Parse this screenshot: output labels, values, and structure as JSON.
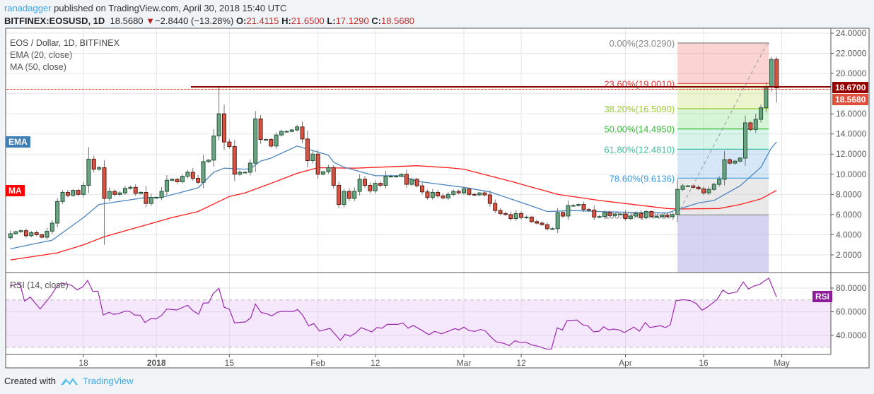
{
  "header": {
    "author": "ranadagger",
    "published": "published on TradingView.com, April 30, 2018 15:40 UTC",
    "symbol": "BITFINEX:EOSUSD, 1D",
    "last": "18.5680",
    "change": "−2.8440 (−13.28%)",
    "o_label": "O:",
    "o": "21.4115",
    "h_label": "H:",
    "h": "21.6500",
    "l_label": "L:",
    "l": "17.1290",
    "c_label": "C:",
    "c": "18.5680"
  },
  "legend": {
    "title": "EOS / Dollar, 1D, BITFINEX",
    "ema": "EMA (20, close)",
    "ma": "MA (50, close)",
    "ema_tag": "EMA",
    "ma_tag": "MA",
    "rsi": "RSI (14, close)",
    "rsi_tag": "RSI"
  },
  "price_axis": [
    "24.0000",
    "22.0000",
    "20.0000",
    "16.0000",
    "14.0000",
    "12.0000",
    "10.0000",
    "8.0000",
    "6.0000",
    "4.0000",
    "2.0000"
  ],
  "price_badges": {
    "resistance": "18.6700",
    "last": "18.5680"
  },
  "rsi_axis": [
    "80.0000",
    "60.0000",
    "40.0000"
  ],
  "time_axis": [
    {
      "label": "18",
      "day": 0
    },
    {
      "label": "2018",
      "day": 14,
      "bold": true
    },
    {
      "label": "15",
      "day": 28
    },
    {
      "label": "Feb",
      "day": 45
    },
    {
      "label": "12",
      "day": 56
    },
    {
      "label": "Mar",
      "day": 73
    },
    {
      "label": "12",
      "day": 84
    },
    {
      "label": "Apr",
      "day": 104
    },
    {
      "label": "16",
      "day": 119
    },
    {
      "label": "May",
      "day": 134
    }
  ],
  "fib": {
    "start_day": 114,
    "end_day": 131.5,
    "levels": [
      {
        "label": "0.00%(23.0290)",
        "price": 23.029,
        "color": "#888888"
      },
      {
        "label": "23.60%(19.0010)",
        "price": 19.001,
        "color": "#e53935"
      },
      {
        "label": "38.20%(16.5090)",
        "price": 16.509,
        "color": "#9acd32"
      },
      {
        "label": "50.00%(14.4950)",
        "price": 14.495,
        "color": "#33bb33"
      },
      {
        "label": "61.80%(12.4810)",
        "price": 12.481,
        "color": "#3bbf9c"
      },
      {
        "label": "78.60%(9.6136)",
        "price": 9.6136,
        "color": "#3a9be0"
      },
      {
        "label": "100.00%(5.9610)",
        "price": 5.961,
        "color": "#888888"
      }
    ]
  },
  "resistance_price": 18.67,
  "chart_data": {
    "type": "candlestick",
    "first_day": -14,
    "first_open": 3.7,
    "closes": [
      4.1,
      4.3,
      4.4,
      3.9,
      4.2,
      4.0,
      3.75,
      4.35,
      5.15,
      7.3,
      8.2,
      7.9,
      8.4,
      8.0,
      8.9,
      11.5,
      10.5,
      10.65,
      7.6,
      8.3,
      8.0,
      8.15,
      8.6,
      8.7,
      8.1,
      8.2,
      7.1,
      7.7,
      7.7,
      8.3,
      9.4,
      9.5,
      9.25,
      9.8,
      10.2,
      9.6,
      9.2,
      11.25,
      11.4,
      13.8,
      16.0,
      13.2,
      12.75,
      10.0,
      10.2,
      10.2,
      11.1,
      15.5,
      13.45,
      13.45,
      12.8,
      13.9,
      14.25,
      14.25,
      14.4,
      14.7,
      13.5,
      11.35,
      12.0,
      10.0,
      10.25,
      10.65,
      8.9,
      7.0,
      8.3,
      7.6,
      8.3,
      9.5,
      8.9,
      8.35,
      9.1,
      8.9,
      9.8,
      9.8,
      9.8,
      10.0,
      9.0,
      9.5,
      8.85,
      8.25,
      7.7,
      8.2,
      7.85,
      7.65,
      8.0,
      8.3,
      8.15,
      8.55,
      8.0,
      7.95,
      8.15,
      7.95,
      7.1,
      6.4,
      6.1,
      6.0,
      5.6,
      6.1,
      5.7,
      5.75,
      5.3,
      5.15,
      5.0,
      4.6,
      4.6,
      6.2,
      5.85,
      6.9,
      6.9,
      7.0,
      6.5,
      6.45,
      5.75,
      5.8,
      6.2,
      5.9,
      6.05,
      6.05,
      5.6,
      5.85,
      6.1,
      5.7,
      6.3,
      5.8,
      5.8,
      5.95,
      5.8,
      6.0,
      8.5,
      8.85,
      8.85,
      8.7,
      8.55,
      8.15,
      8.5,
      9.0,
      9.5,
      11.45,
      11.1,
      11.3,
      11.6,
      15.1,
      14.45,
      15.45,
      16.6,
      18.7,
      21.4,
      18.568
    ],
    "wick_overrides": {
      "4": {
        "l": 3.0
      },
      "26": {
        "h": 18.7
      },
      "132": {
        "h": 21.65
      },
      "133": {
        "h": 21.65,
        "l": 17.129
      }
    },
    "ema20": [
      [
        -14,
        2.6
      ],
      [
        -8,
        3.25
      ],
      [
        -6,
        3.45
      ],
      [
        0,
        5.7
      ],
      [
        3,
        7.0
      ],
      [
        12,
        7.7
      ],
      [
        15,
        7.7
      ],
      [
        22,
        8.65
      ],
      [
        25,
        10.2
      ],
      [
        27,
        10.6
      ],
      [
        31,
        10.5
      ],
      [
        32,
        10.55
      ],
      [
        34,
        11.3
      ],
      [
        36,
        11.6
      ],
      [
        41,
        12.8
      ],
      [
        45,
        12.2
      ],
      [
        47,
        11.9
      ],
      [
        48,
        11.2
      ],
      [
        50,
        10.7
      ],
      [
        56,
        9.85
      ],
      [
        61,
        9.85
      ],
      [
        64,
        9.3
      ],
      [
        73,
        8.7
      ],
      [
        78,
        8.25
      ],
      [
        82,
        7.55
      ],
      [
        86,
        6.85
      ],
      [
        89,
        6.3
      ],
      [
        94,
        6.4
      ],
      [
        99,
        6.3
      ],
      [
        112,
        6.15
      ],
      [
        114,
        6.5
      ],
      [
        118,
        7.15
      ],
      [
        121,
        7.4
      ],
      [
        126,
        8.85
      ],
      [
        130,
        10.7
      ],
      [
        132,
        12.6
      ],
      [
        133,
        13.2
      ]
    ],
    "ma50": [
      [
        -14,
        1.5
      ],
      [
        -5,
        2.2
      ],
      [
        0,
        3.0
      ],
      [
        4,
        3.8
      ],
      [
        17,
        5.7
      ],
      [
        22,
        6.3
      ],
      [
        28,
        7.8
      ],
      [
        31,
        8.15
      ],
      [
        37,
        9.3
      ],
      [
        41,
        10.1
      ],
      [
        45,
        10.65
      ],
      [
        52,
        10.6
      ],
      [
        64,
        10.85
      ],
      [
        70,
        10.65
      ],
      [
        73,
        10.5
      ],
      [
        82,
        9.3
      ],
      [
        91,
        8.0
      ],
      [
        99,
        7.4
      ],
      [
        112,
        6.6
      ],
      [
        114,
        6.55
      ],
      [
        122,
        6.6
      ],
      [
        126,
        7.0
      ],
      [
        130,
        7.55
      ],
      [
        133,
        8.4
      ]
    ],
    "rsi": [
      [
        -14.1,
        81.8
      ],
      [
        -12.2,
        83.8
      ],
      [
        -11.3,
        69
      ],
      [
        -10.2,
        72.4
      ],
      [
        -8.3,
        62.3
      ],
      [
        -6.3,
        73.2
      ],
      [
        -5.2,
        80.8
      ],
      [
        -4.2,
        84.4
      ],
      [
        -2.3,
        82.4
      ],
      [
        -1.2,
        78.4
      ],
      [
        -0.1,
        81.2
      ],
      [
        0.8,
        86.4
      ],
      [
        1.8,
        77.2
      ],
      [
        2.8,
        77.4
      ],
      [
        3.8,
        57.3
      ],
      [
        4.9,
        59.5
      ],
      [
        5.8,
        57.9
      ],
      [
        6.6,
        58.2
      ],
      [
        8,
        60.5
      ],
      [
        8.8,
        60.5
      ],
      [
        9.8,
        57.3
      ],
      [
        10.9,
        57.1
      ],
      [
        11.8,
        50.9
      ],
      [
        13,
        54.3
      ],
      [
        13.9,
        53.9
      ],
      [
        15,
        56.9
      ],
      [
        16,
        62.3
      ],
      [
        17.9,
        61.5
      ],
      [
        20,
        65.5
      ],
      [
        21,
        60.9
      ],
      [
        22.1,
        57.9
      ],
      [
        23,
        67.3
      ],
      [
        24,
        67.5
      ],
      [
        24.9,
        75.2
      ],
      [
        26,
        79.8
      ],
      [
        27,
        63.9
      ],
      [
        28,
        62
      ],
      [
        29,
        50.6
      ],
      [
        31.1,
        51.4
      ],
      [
        32.1,
        54.9
      ],
      [
        33,
        66.5
      ],
      [
        34.1,
        59.3
      ],
      [
        35.1,
        58.5
      ],
      [
        36.1,
        56.5
      ],
      [
        37.3,
        59.7
      ],
      [
        38.1,
        60.3
      ],
      [
        40.3,
        60.3
      ],
      [
        41.1,
        61.9
      ],
      [
        42.1,
        56.9
      ],
      [
        43.2,
        48
      ],
      [
        44.2,
        50
      ],
      [
        45.3,
        43.6
      ],
      [
        47.3,
        45.9
      ],
      [
        49.3,
        35.8
      ],
      [
        50.2,
        40.9
      ],
      [
        51.2,
        39.3
      ],
      [
        52.3,
        42.3
      ],
      [
        53.3,
        46.6
      ],
      [
        55.3,
        43
      ],
      [
        56.3,
        46.6
      ],
      [
        57.3,
        46
      ],
      [
        58.3,
        49.3
      ],
      [
        60.3,
        49.3
      ],
      [
        61.3,
        50.5
      ],
      [
        62.3,
        46
      ],
      [
        63.3,
        48.5
      ],
      [
        64.8,
        44.6
      ],
      [
        66.3,
        40.6
      ],
      [
        67.4,
        43.4
      ],
      [
        68.7,
        41.4
      ],
      [
        70.3,
        44
      ],
      [
        71.3,
        45.8
      ],
      [
        72,
        44.6
      ],
      [
        73,
        47
      ],
      [
        74,
        44
      ],
      [
        75.1,
        43.4
      ],
      [
        76.2,
        45
      ],
      [
        77.1,
        43.8
      ],
      [
        78.2,
        38.6
      ],
      [
        79.2,
        34.6
      ],
      [
        80.6,
        33.4
      ],
      [
        81.7,
        31.4
      ],
      [
        82.8,
        35.4
      ],
      [
        83.9,
        33.9
      ],
      [
        84.8,
        34.3
      ],
      [
        86,
        32
      ],
      [
        87.1,
        31
      ],
      [
        88.8,
        28.5
      ],
      [
        89.8,
        28.5
      ],
      [
        90.9,
        46.4
      ],
      [
        91.9,
        44.6
      ],
      [
        92.8,
        52.5
      ],
      [
        94.7,
        53
      ],
      [
        95.8,
        49
      ],
      [
        96.8,
        48
      ],
      [
        97.9,
        43
      ],
      [
        99,
        43.6
      ],
      [
        99.8,
        47.3
      ],
      [
        100.8,
        44.6
      ],
      [
        101.7,
        45.4
      ],
      [
        102.8,
        44.6
      ],
      [
        103.8,
        42.4
      ],
      [
        105.6,
        47
      ],
      [
        106.7,
        43.6
      ],
      [
        107.8,
        50.9
      ],
      [
        108.7,
        46.6
      ],
      [
        110.7,
        48.2
      ],
      [
        111.7,
        46.6
      ],
      [
        112.6,
        49
      ],
      [
        113.7,
        69.3
      ],
      [
        115.1,
        70.2
      ],
      [
        116.4,
        69.5
      ],
      [
        117.6,
        66.9
      ],
      [
        118.7,
        61.3
      ],
      [
        119.7,
        63.9
      ],
      [
        120.7,
        67.3
      ],
      [
        121.6,
        70.4
      ],
      [
        122.7,
        78.4
      ],
      [
        123.7,
        75.2
      ],
      [
        125.4,
        76.8
      ],
      [
        126.6,
        85.2
      ],
      [
        127.6,
        79.2
      ],
      [
        128.7,
        81.8
      ],
      [
        129.8,
        83.2
      ],
      [
        130.6,
        85.8
      ],
      [
        131.5,
        88.4
      ],
      [
        133,
        72.4
      ]
    ],
    "rsi_bands": [
      70,
      30
    ],
    "ylim": [
      0,
      24.5
    ],
    "rsi_ylim": [
      25,
      93
    ]
  },
  "colors": {
    "up_body": "#6ba583",
    "up_border": "#225437",
    "down_body": "#d75442",
    "down_border": "#5b1a13",
    "wick": "#737375",
    "ema": "#4a86c0",
    "ma": "#ff1a1a",
    "rsi": "#9c27b0",
    "resistance": "#8b0000",
    "badge_res": "#990000",
    "badge_last": "#e0503c",
    "rsi_tag": "#8e1b9a"
  },
  "footer": {
    "created": "Created with",
    "brand": "TradingView"
  }
}
